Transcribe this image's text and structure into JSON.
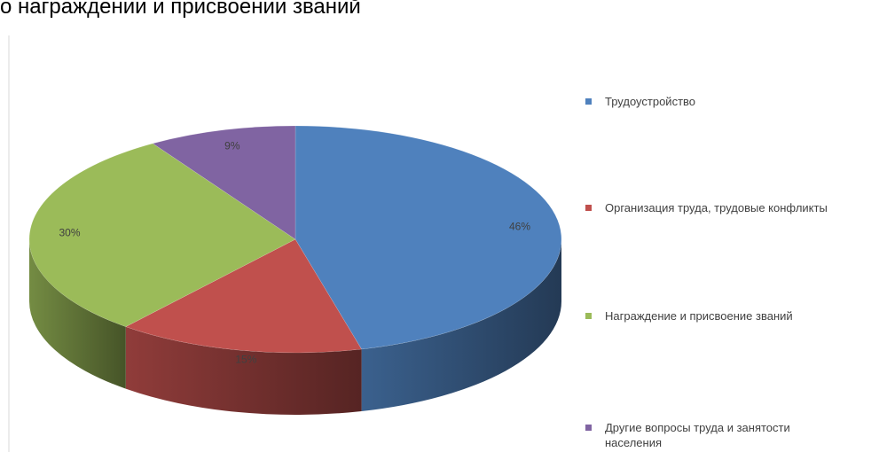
{
  "chart_data": {
    "type": "pie",
    "title": "о награждении и присвоении званий",
    "categories": [
      "Трудоустройство",
      "Организация труда, трудовые конфликты",
      "Награждение и присвоение званий",
      "Другие вопросы труда и занятости населения"
    ],
    "values": [
      46,
      15,
      30,
      9
    ],
    "value_labels": [
      "46%",
      "15%",
      "30%",
      "9%"
    ],
    "colors": [
      "#4f81bd",
      "#c0504d",
      "#9bbb59",
      "#8064a2"
    ],
    "legend": "right"
  }
}
